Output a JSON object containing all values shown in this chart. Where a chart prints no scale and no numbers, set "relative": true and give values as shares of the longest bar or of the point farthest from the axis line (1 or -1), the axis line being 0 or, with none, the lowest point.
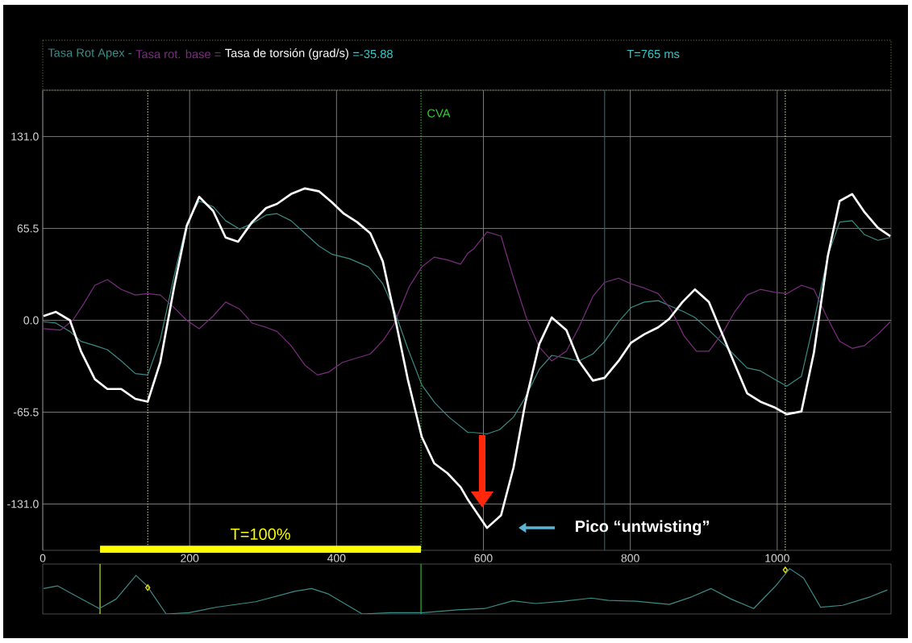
{
  "chart_data": [
    {
      "type": "line",
      "legend": "top",
      "grid": true,
      "xlim": [
        0,
        1155
      ],
      "ylim": [
        -164,
        164
      ],
      "xticks": [
        0,
        200,
        400,
        600,
        800,
        1000
      ],
      "yticks": [
        {
          "value": 131,
          "label": "131.0"
        },
        {
          "value": 65.5,
          "label": "65.5"
        },
        {
          "value": 0,
          "label": "0.0"
        },
        {
          "value": -65.5,
          "label": "-65.5"
        },
        {
          "value": -131,
          "label": "-131.0"
        }
      ],
      "series": [
        {
          "name": "Tasa Rot Apex -",
          "color": "#3a8c86",
          "x": [
            1,
            18,
            37,
            52,
            71,
            88,
            107,
            126,
            143,
            160,
            179,
            196,
            213,
            232,
            249,
            268,
            285,
            304,
            319,
            338,
            357,
            376,
            394,
            417,
            444,
            463,
            478,
            497,
            516,
            534,
            553,
            579,
            587,
            605,
            622,
            641,
            657,
            676,
            693,
            713,
            730,
            749,
            765,
            784,
            801,
            819,
            838,
            855,
            873,
            888,
            907,
            927,
            942,
            959,
            977,
            996,
            1013,
            1033,
            1050,
            1069,
            1085,
            1102,
            1119,
            1137,
            1154
          ],
          "values": [
            -1,
            -2,
            -8,
            -15,
            -18,
            -21,
            -29,
            -38,
            -39,
            -14,
            32,
            69,
            85,
            81,
            71,
            65,
            69,
            75,
            76,
            71,
            62,
            53,
            47,
            44,
            38,
            26,
            8,
            -20,
            -46,
            -59,
            -69,
            -80,
            -80,
            -81,
            -78,
            -69,
            -55,
            -35,
            -25,
            -27,
            -29,
            -24,
            -15,
            -1,
            9,
            13,
            14,
            10,
            6,
            2,
            -7,
            -17,
            -25,
            -34,
            -36,
            -42,
            -47,
            -40,
            -1,
            46,
            70,
            71,
            61,
            57,
            59
          ]
        },
        {
          "name": "Tasa rot. base =",
          "color": "#7b2d7f",
          "x": [
            1,
            24,
            41,
            56,
            71,
            88,
            107,
            126,
            143,
            160,
            177,
            196,
            213,
            232,
            249,
            268,
            285,
            304,
            319,
            338,
            357,
            374,
            389,
            408,
            427,
            446,
            464,
            478,
            499,
            516,
            533,
            551,
            569,
            579,
            587,
            605,
            624,
            641,
            659,
            676,
            693,
            713,
            730,
            749,
            765,
            784,
            801,
            819,
            838,
            855,
            873,
            890,
            907,
            927,
            942,
            959,
            977,
            996,
            1013,
            1033,
            1050,
            1067,
            1085,
            1102,
            1119,
            1137,
            1154
          ],
          "values": [
            -6,
            -7,
            0,
            12,
            25,
            29,
            22,
            18,
            19,
            18,
            10,
            0,
            -6,
            3,
            13,
            8,
            -2,
            -5,
            -8,
            -18,
            -32,
            -39,
            -37,
            -30,
            -27,
            -24,
            -14,
            -3,
            24,
            38,
            45,
            43,
            40,
            48,
            51,
            63,
            60,
            30,
            1,
            -19,
            -29,
            -22,
            -5,
            17,
            27,
            30,
            26,
            23,
            19,
            8,
            -11,
            -22,
            -22,
            -8,
            6,
            18,
            22,
            20,
            19,
            25,
            22,
            3,
            -15,
            -20,
            -18,
            -10,
            -1
          ]
        },
        {
          "name": "Tasa de torsión (grad/s)",
          "color": "#ffffff",
          "x": [
            1,
            18,
            37,
            52,
            71,
            88,
            107,
            126,
            143,
            160,
            179,
            196,
            213,
            232,
            249,
            266,
            285,
            304,
            319,
            338,
            357,
            376,
            394,
            410,
            428,
            446,
            463,
            478,
            497,
            516,
            533,
            551,
            569,
            579,
            605,
            624,
            641,
            657,
            676,
            693,
            713,
            730,
            749,
            765,
            784,
            801,
            819,
            838,
            853,
            871,
            888,
            907,
            923,
            942,
            959,
            977,
            996,
            1013,
            1033,
            1050,
            1069,
            1085,
            1102,
            1119,
            1137,
            1154
          ],
          "values": [
            3,
            6,
            0,
            -22,
            -42,
            -49,
            -49,
            -56,
            -58,
            -30,
            24,
            67,
            88,
            78,
            59,
            56,
            70,
            80,
            83,
            90,
            94,
            92,
            84,
            76,
            70,
            62,
            42,
            6,
            -42,
            -83,
            -102,
            -109,
            -119,
            -128,
            -148,
            -139,
            -105,
            -59,
            -17,
            2,
            -7,
            -29,
            -43,
            -41,
            -29,
            -16,
            -10,
            -5,
            1,
            13,
            22,
            13,
            -7,
            -31,
            -52,
            -58,
            -62,
            -67,
            -65,
            -23,
            46,
            85,
            90,
            77,
            66,
            60
          ]
        }
      ],
      "ref_lines": [
        {
          "axis": "x",
          "value": 143,
          "color": "#e6e68a",
          "line_style": "dotted"
        },
        {
          "axis": "x",
          "value": 515,
          "label": "CVA",
          "color": "#33cc33",
          "line_style": "dotted"
        },
        {
          "axis": "x",
          "value": 765,
          "color": "#2e6e6a",
          "line_style": "solid"
        },
        {
          "axis": "x",
          "value": 1011,
          "color": "#e6e68a",
          "line_style": "dotted"
        }
      ],
      "annotations": [
        "=-35.88",
        "T=765 ms",
        "Pico “untwisting”"
      ]
    },
    {
      "type": "line",
      "relative": true,
      "xlim": [
        0,
        1155
      ],
      "series": [
        {
          "color": "#3a8c86",
          "x": [
            1,
            20,
            47,
            77,
            100,
            127,
            142,
            168,
            199,
            237,
            290,
            343,
            366,
            389,
            435,
            473,
            518,
            564,
            602,
            640,
            671,
            709,
            747,
            770,
            808,
            853,
            884,
            910,
            937,
            968,
            998,
            1017,
            1036,
            1059,
            1089,
            1127,
            1150
          ],
          "values": [
            0.56,
            0.62,
            0.38,
            0.12,
            0.33,
            0.85,
            0.62,
            0,
            0.03,
            0.15,
            0.27,
            0.5,
            0.56,
            0.44,
            0,
            0.03,
            0.03,
            0.09,
            0.12,
            0.29,
            0.23,
            0.28,
            0.35,
            0.3,
            0.28,
            0.21,
            0.38,
            0.56,
            0.33,
            0.12,
            0.62,
            1,
            0.79,
            0.15,
            0.19,
            0.38,
            0.53
          ]
        },
        {
          "type": "scatter",
          "marker": "diamond",
          "color": "#e6e600",
          "x": [
            143,
            1011
          ],
          "values": [
            0.58,
            0.97
          ]
        }
      ],
      "ref_lines": [
        {
          "axis": "x",
          "value": 78,
          "color": "#ccff33"
        },
        {
          "axis": "x",
          "value": 515,
          "color": "#33cc33"
        }
      ],
      "annotations": [
        "T=100%"
      ]
    }
  ]
}
